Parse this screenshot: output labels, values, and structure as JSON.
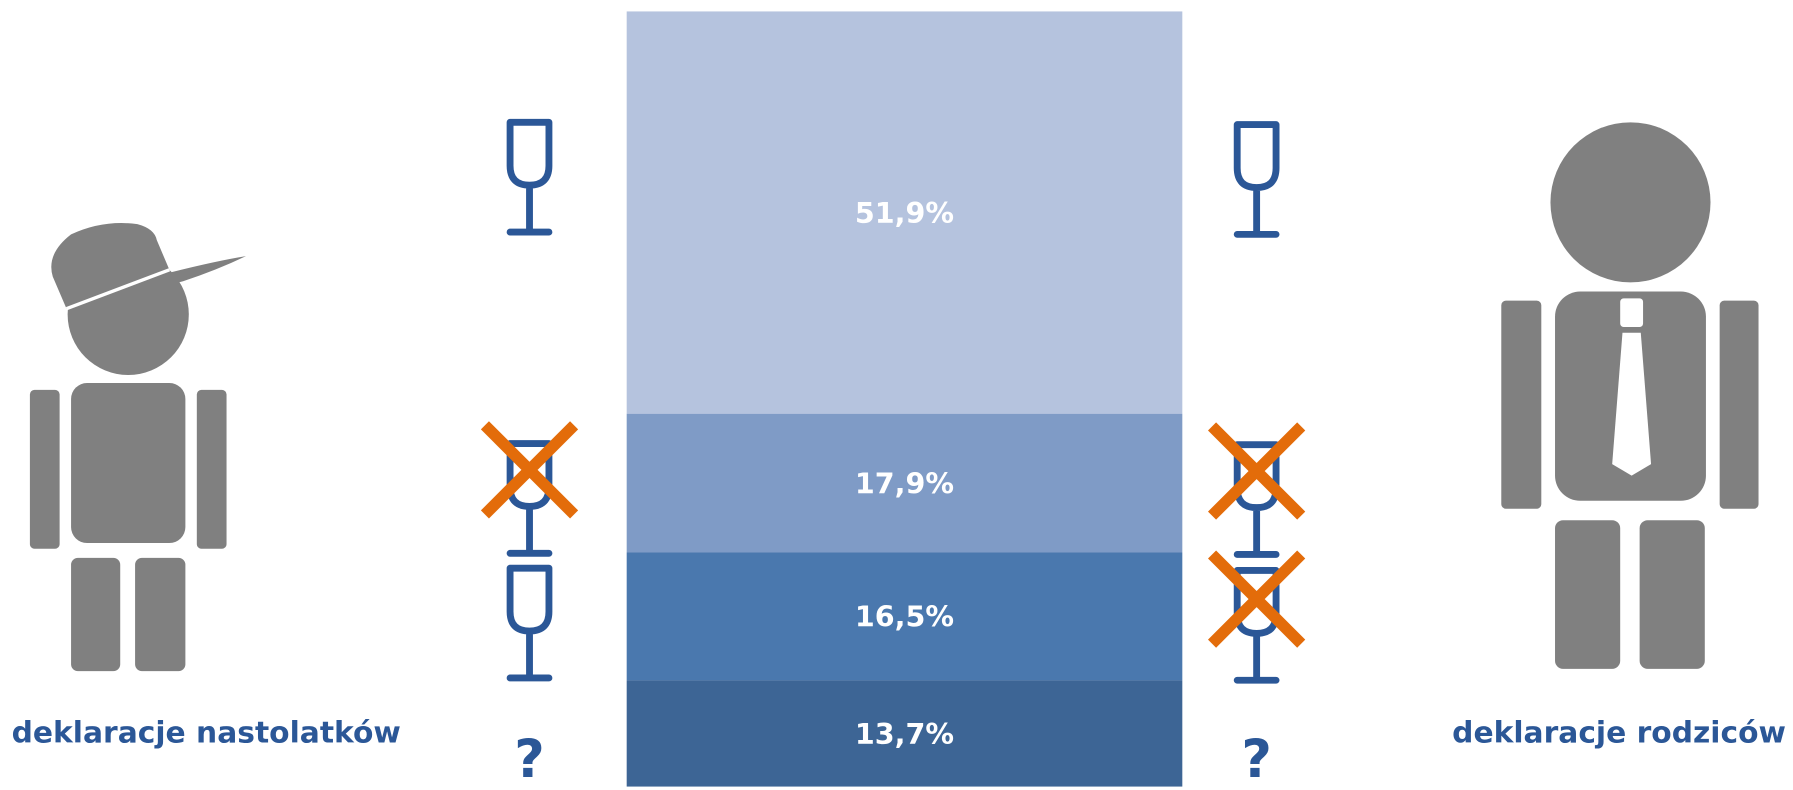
{
  "chart_data": {
    "type": "stacked_bar",
    "values": [
      51.9,
      17.9,
      16.5,
      13.7
    ],
    "value_labels": [
      "51,9%",
      "17,9%",
      "16,5%",
      "13,7%"
    ],
    "colors": [
      "#b5c3de",
      "#7f9bc6",
      "#4a78ae",
      "#3d6595"
    ],
    "ylim": [
      0,
      100
    ],
    "left_label": "deklaracje nastolatków",
    "right_label": "deklaracje rodziców",
    "left_question": "?",
    "right_question": "?"
  }
}
